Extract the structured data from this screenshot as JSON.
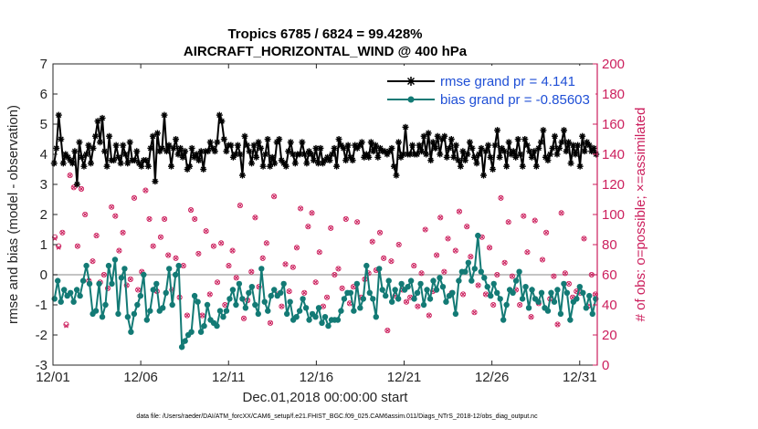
{
  "chart_data": {
    "type": "line",
    "title_line1": "Tropics 6785 / 6824 = 99.428%",
    "title_line2": "AIRCRAFT_HORIZONTAL_WIND @ 400 hPa",
    "xlabel": "Dec.01,2018 00:00:00 start",
    "ylabel_left": "rmse and bias (model - observation)",
    "ylabel_right": "# of obs: o=possible; ×=assimilated",
    "xlim": [
      0,
      31
    ],
    "ylim_left": [
      -3,
      7
    ],
    "ylim_right": [
      0,
      200
    ],
    "x_ticks": [
      0,
      5,
      10,
      15,
      20,
      25,
      30
    ],
    "x_tick_labels": [
      "12/01",
      "12/06",
      "12/11",
      "12/16",
      "12/21",
      "12/26",
      "12/31"
    ],
    "y_ticks_left": [
      -3,
      -2,
      -1,
      0,
      1,
      2,
      3,
      4,
      5,
      6,
      7
    ],
    "y_ticks_right": [
      0,
      20,
      40,
      60,
      80,
      100,
      120,
      140,
      160,
      180,
      200
    ],
    "zero_line_right": 60,
    "colors": {
      "rmse": "#000000",
      "bias": "#137a75",
      "obs": "#cc1f5d",
      "zero_line": "#b0b0b0",
      "legend_text": "#1f4fd6",
      "axis": "#262626"
    },
    "series": [
      {
        "name": "rmse grand pr = 4.141",
        "values": [
          3.7,
          4.2,
          5.3,
          4.5,
          3.7,
          4.0,
          3.9,
          3.8,
          3.7,
          4.1,
          3.0,
          4.4,
          3.9,
          3.6,
          4.0,
          4.3,
          3.7,
          4.2,
          4.6,
          5.1,
          4.4,
          5.2,
          4.1,
          3.6,
          4.6,
          3.8,
          3.8,
          4.3,
          3.9,
          3.7,
          4.3,
          4.0,
          3.7,
          4.4,
          3.8,
          3.8,
          4.1,
          3.7,
          3.6,
          3.8,
          3.8,
          3.6,
          4.2,
          4.6,
          3.1,
          4.7,
          4.1,
          4.2,
          5.3,
          4.1,
          4.3,
          3.6,
          4.2,
          4.5,
          4.0,
          4.2,
          3.9,
          4.1,
          3.5,
          3.6,
          4.2,
          3.9,
          4.0,
          3.8,
          4.1,
          3.5,
          4.1,
          4.1,
          4.4,
          4.2,
          4.1,
          4.4,
          5.3,
          5.1,
          4.5,
          4.1,
          4.3,
          4.3,
          3.9,
          4.0,
          4.3,
          4.0,
          3.3,
          4.6,
          4.3,
          4.1,
          3.7,
          4.3,
          3.9,
          4.4,
          4.2,
          3.6,
          4.0,
          4.5,
          3.6,
          3.9,
          3.7,
          4.4,
          4.5,
          3.8,
          3.7,
          3.6,
          4.1,
          4.4,
          4.0,
          3.7,
          4.0,
          4.0,
          4.4,
          4.0,
          3.7,
          4.1,
          4.0,
          3.8,
          4.2,
          3.7,
          4.2,
          3.7,
          3.8,
          3.9,
          3.8,
          4.0,
          4.2,
          3.6,
          4.5,
          4.3,
          4.2,
          3.8,
          4.3,
          3.9,
          3.8,
          4.3,
          4.2,
          4.3,
          4.4,
          3.9,
          4.0,
          3.9,
          4.4,
          4.1,
          4.3,
          3.9,
          4.2,
          4.1,
          4.1,
          4.0,
          4.1,
          4.2,
          3.6,
          3.3,
          4.4,
          3.9,
          4.0,
          4.9,
          4.0,
          4.0,
          4.3,
          4.0,
          4.0,
          4.3,
          4.1,
          4.6,
          4.0,
          4.7,
          3.8,
          4.4,
          4.2,
          4.6,
          4.0,
          4.5,
          4.6,
          3.9,
          4.2,
          4.5,
          3.9,
          4.3,
          3.8,
          3.6,
          4.1,
          3.8,
          4.0,
          4.4,
          4.2,
          3.9,
          3.7,
          4.0,
          4.2,
          3.3,
          4.1,
          4.3,
          3.9,
          3.5,
          4.3,
          4.8,
          3.9,
          4.2,
          4.1,
          3.6,
          4.4,
          4.0,
          4.1,
          3.9,
          4.5,
          4.0,
          3.6,
          4.5,
          4.3,
          4.1,
          3.9,
          4.1,
          3.6,
          4.2,
          4.4,
          4.8,
          3.9,
          3.8,
          4.0,
          4.2,
          4.6,
          4.0,
          4.2,
          4.4,
          4.8,
          4.1,
          4.4,
          3.7,
          4.3,
          4.0,
          4.3,
          3.6,
          4.6,
          4.1,
          4.4,
          4.3,
          4.1,
          4.2,
          4.0
        ]
      },
      {
        "name": "bias grand pr = -0.85603",
        "values": [
          -0.8,
          -0.2,
          -0.9,
          -0.5,
          -0.7,
          -0.6,
          -0.9,
          -0.5,
          -0.7,
          -0.2,
          0.3,
          -0.3,
          -1.3,
          -1.2,
          -0.3,
          -1.4,
          -1.0,
          0.3,
          -0.3,
          0.5,
          -1.3,
          -0.1,
          0.2,
          -1.4,
          -1.9,
          -1.3,
          -1.0,
          -0.7,
          0.0,
          -1.5,
          -1.2,
          -0.5,
          -0.3,
          -1.2,
          -1.1,
          -0.6,
          0.2,
          -1.0,
          0.0,
          0.3,
          -2.4,
          -2.2,
          -2.0,
          -1.9,
          -0.7,
          -0.9,
          -1.9,
          -1.7,
          -1.0,
          -1.5,
          -1.6,
          -1.7,
          -1.2,
          -1.4,
          -1.2,
          -0.8,
          -0.5,
          -1.0,
          -0.3,
          -0.8,
          -1.1,
          -0.6,
          -0.4,
          -1.0,
          -1.3,
          0.2,
          -0.9,
          -1.2,
          -0.7,
          -0.5,
          -0.7,
          -0.6,
          -0.3,
          -1.3,
          -0.9,
          -1.5,
          -1.4,
          -1.2,
          -0.8,
          -1.1,
          -1.5,
          -1.3,
          -1.4,
          -1.1,
          -1.6,
          -1.4,
          -1.7,
          -1.5,
          -1.5,
          -1.5,
          -1.2,
          -0.8,
          -0.6,
          -0.6,
          -1.2,
          -0.3,
          -1.1,
          -0.8,
          0.3,
          -0.6,
          -0.8,
          -1.4,
          0.2,
          -0.5,
          -0.7,
          -0.2,
          -0.9,
          -0.5,
          -0.8,
          -0.3,
          -0.5,
          -0.4,
          -0.2,
          -0.8,
          -0.6,
          -0.3,
          -1.0,
          -0.5,
          -0.8,
          -0.2,
          -0.5,
          -0.1,
          -0.4,
          -0.9,
          -0.7,
          -0.6,
          -1.3,
          -0.2,
          0.1,
          0.1,
          0.4,
          -0.2,
          0.2,
          1.3,
          0.1,
          -0.1,
          -0.4,
          -0.7,
          -0.3,
          -0.6,
          -0.8,
          -1.5,
          -1.0,
          -0.5,
          -0.6,
          -0.2,
          0.1,
          -0.8,
          -0.4,
          -1.1,
          -0.5,
          -0.8,
          -0.9,
          -0.6,
          -1.1,
          -1.2,
          -0.6,
          -0.9,
          -0.5,
          -1.3,
          -0.3,
          -0.6,
          -1.5,
          -0.9,
          -0.8,
          -0.4,
          -0.6,
          -1.1,
          -0.7,
          -1.3,
          -0.8
        ]
      }
    ],
    "obs_possible": [
      85,
      79,
      88,
      27,
      126,
      118,
      79,
      117,
      100,
      56,
      69,
      86,
      55,
      60,
      51,
      105,
      99,
      76,
      88,
      53,
      57,
      111,
      50,
      62,
      116,
      97,
      79,
      49,
      85,
      97,
      73,
      50,
      71,
      45,
      66,
      33,
      103,
      97,
      74,
      33,
      89,
      47,
      79,
      55,
      81,
      40,
      66,
      76,
      58,
      106,
      31,
      43,
      62,
      98,
      52,
      71,
      81,
      28,
      112,
      47,
      39,
      67,
      49,
      65,
      78,
      104,
      48,
      92,
      101,
      55,
      75,
      39,
      45,
      91,
      60,
      64,
      51,
      97,
      41,
      52,
      95,
      45,
      57,
      61,
      82,
      63,
      88,
      71,
      23,
      69,
      46,
      80,
      50,
      42,
      45,
      66,
      39,
      61,
      90,
      33,
      49,
      73,
      98,
      62,
      84,
      48,
      76,
      102,
      47,
      92,
      72,
      35,
      53,
      85,
      47,
      78,
      40,
      60,
      111,
      68,
      95,
      59,
      50,
      40,
      99,
      75,
      32,
      96,
      41,
      70,
      88,
      44,
      59,
      27,
      101,
      61,
      54,
      45,
      49,
      48,
      84,
      39,
      60,
      47
    ],
    "obs_assimilated": [
      84,
      78,
      88,
      26,
      126,
      118,
      79,
      117,
      100,
      56,
      69,
      86,
      55,
      60,
      51,
      105,
      99,
      76,
      88,
      53,
      57,
      111,
      50,
      62,
      116,
      97,
      79,
      49,
      85,
      97,
      73,
      50,
      71,
      45,
      66,
      33,
      103,
      97,
      74,
      33,
      89,
      47,
      79,
      55,
      81,
      40,
      66,
      76,
      58,
      106,
      31,
      43,
      62,
      98,
      52,
      71,
      81,
      28,
      112,
      47,
      39,
      67,
      49,
      65,
      78,
      104,
      48,
      92,
      101,
      55,
      75,
      39,
      45,
      91,
      60,
      64,
      51,
      97,
      41,
      52,
      95,
      45,
      57,
      61,
      82,
      63,
      88,
      71,
      23,
      69,
      46,
      80,
      50,
      42,
      45,
      66,
      39,
      61,
      90,
      33,
      49,
      73,
      98,
      62,
      84,
      48,
      76,
      102,
      47,
      92,
      72,
      35,
      53,
      85,
      47,
      78,
      40,
      60,
      111,
      68,
      95,
      59,
      50,
      40,
      99,
      75,
      32,
      96,
      41,
      70,
      88,
      44,
      59,
      27,
      101,
      61,
      54,
      45,
      49,
      48,
      84,
      39,
      60,
      47
    ]
  },
  "footnote": "data file: /Users/raeder/DAI/ATM_forcXX/CAM6_setup/f.e21.FHIST_BGC.f09_025.CAM6assim.011/Diags_NTrS_2018-12/obs_diag_output.nc"
}
